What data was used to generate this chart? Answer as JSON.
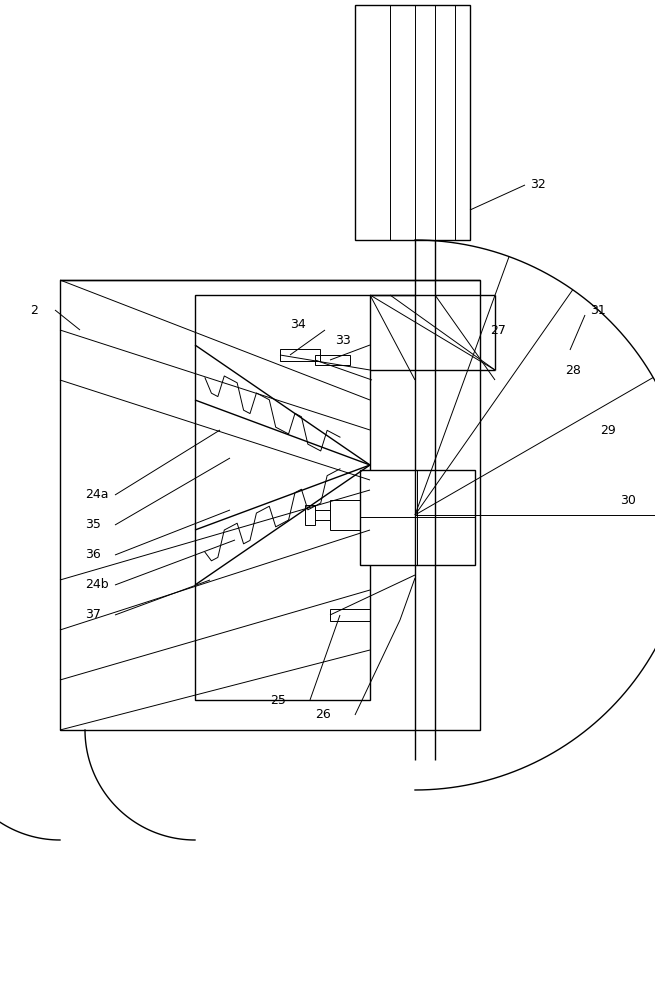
{
  "bg_color": "#ffffff",
  "lc": "#000000",
  "lw": 1.0,
  "tlw": 0.7
}
